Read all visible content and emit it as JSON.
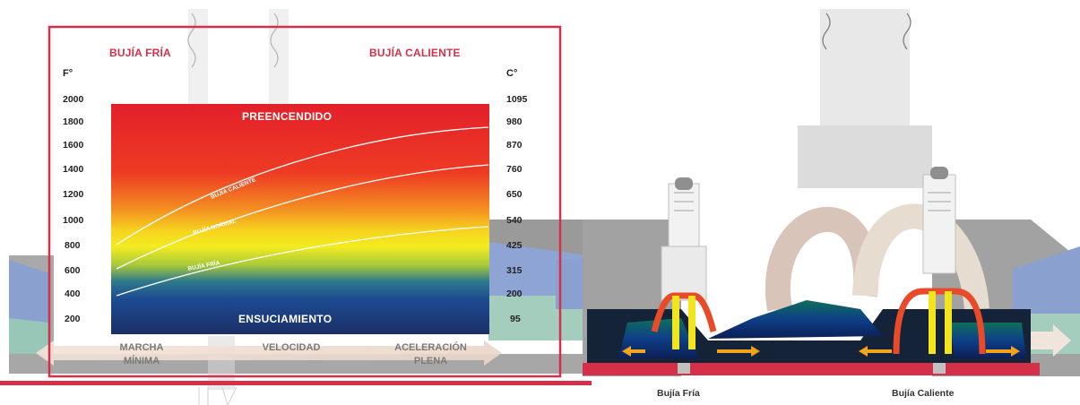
{
  "headers": {
    "cold_plug": "BUJÍA FRÍA",
    "hot_plug": "BUJÍA CALIENTE"
  },
  "units": {
    "left": "F°",
    "right": "C°"
  },
  "ticks_f": [
    "2000",
    "1800",
    "1600",
    "1400",
    "1200",
    "1000",
    "800",
    "600",
    "400",
    "200"
  ],
  "ticks_c": [
    "1095",
    "980",
    "870",
    "760",
    "650",
    "540",
    "425",
    "315",
    "200",
    "95"
  ],
  "zones": {
    "top": "PREENCENDIDO",
    "bottom": "ENSUCIAMIENTO"
  },
  "curves": {
    "hot": "BUJÍA CALIENTE",
    "normal": "BUJÍA NORMAL",
    "cold": "BUJÍA FRÍA"
  },
  "x_labels": {
    "idle": [
      "MARCHA",
      "MÍNIMA"
    ],
    "speed": "VELOCIDAD",
    "full": [
      "ACELERACIÓN",
      "PLENA"
    ]
  },
  "plug_labels": {
    "cold": "Bujía Fría",
    "hot": "Bujía Caliente"
  },
  "colors": {
    "frame": "#d4304a",
    "preignition_red": "#e5262c",
    "normal_yellow": "#f3ea1c",
    "fouling_blue": "#1b3f8c",
    "heat_arrow": "#e94a2a"
  }
}
